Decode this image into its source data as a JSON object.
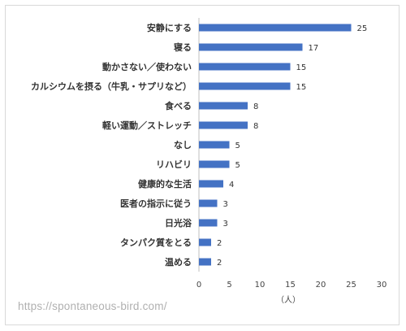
{
  "chart_data": {
    "type": "bar",
    "orientation": "horizontal",
    "categories": [
      "安静にする",
      "寝る",
      "動かさない／使わない",
      "カルシウムを摂る（牛乳・サプリなど）",
      "食べる",
      "軽い運動／ストレッチ",
      "なし",
      "リハビリ",
      "健康的な生活",
      "医者の指示に従う",
      "日光浴",
      "タンパク質をとる",
      "温める"
    ],
    "values": [
      25,
      17,
      15,
      15,
      8,
      8,
      5,
      5,
      4,
      3,
      3,
      2,
      2
    ],
    "xlim": [
      0,
      30
    ],
    "xticks": [
      0,
      5,
      10,
      15,
      20,
      25,
      30
    ],
    "xlabel": "（人）",
    "bar_color": "#4472c4",
    "grid": false,
    "data_labels": true
  },
  "watermark": "https://spontaneous-bird.com/"
}
